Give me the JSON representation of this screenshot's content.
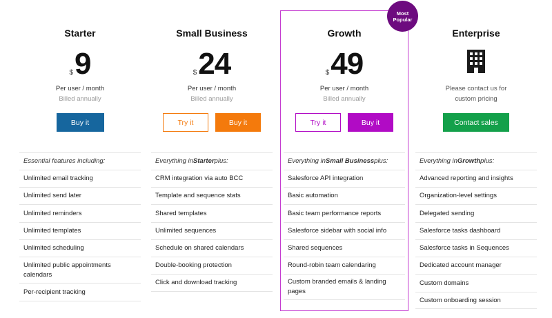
{
  "badge": {
    "line1": "Most",
    "line2": "Popular"
  },
  "colors": {
    "starter_button": "#16669e",
    "small_business": "#f47a0c",
    "growth": "#b10bc5",
    "growth_border": "#c43cd0",
    "badge": "#6d0b7f",
    "enterprise_button": "#13a04a"
  },
  "plans": {
    "starter": {
      "name": "Starter",
      "currency": "$",
      "price": "9",
      "per_user": "Per user / month",
      "billed": "Billed annually",
      "buy_label": "Buy it",
      "features": {
        "intro": "Essential features including:",
        "items": [
          "Unlimited email tracking",
          "Unlimited send later",
          "Unlimited reminders",
          "Unlimited templates",
          "Unlimited scheduling",
          "Unlimited public appointments calendars",
          "Per-recipient tracking"
        ]
      }
    },
    "small_business": {
      "name": "Small Business",
      "currency": "$",
      "price": "24",
      "per_user": "Per user / month",
      "billed": "Billed annually",
      "try_label": "Try it",
      "buy_label": "Buy it",
      "features": {
        "intro_prefix": "Everything in ",
        "intro_bold": "Starter",
        "intro_suffix": " plus:",
        "items": [
          "CRM integration via auto BCC",
          "Template and sequence stats",
          "Shared templates",
          "Unlimited sequences",
          "Schedule on shared calendars",
          "Double-booking protection",
          "Click and download tracking"
        ]
      }
    },
    "growth": {
      "name": "Growth",
      "currency": "$",
      "price": "49",
      "per_user": "Per user / month",
      "billed": "Billed annually",
      "try_label": "Try it",
      "buy_label": "Buy it",
      "features": {
        "intro_prefix": "Everything in ",
        "intro_bold": "Small Business",
        "intro_suffix": " plus:",
        "items": [
          "Salesforce API integration",
          "Basic automation",
          "Basic team performance reports",
          "Salesforce sidebar with social info",
          "Shared sequences",
          "Round-robin team calendaring",
          "Custom branded emails & landing pages"
        ]
      }
    },
    "enterprise": {
      "name": "Enterprise",
      "icon": "building-icon",
      "contact_line1": "Please contact us for",
      "contact_line2": "custom pricing",
      "contact_label": "Contact sales",
      "features": {
        "intro_prefix": "Everything in ",
        "intro_bold": "Growth",
        "intro_suffix": " plus:",
        "items": [
          "Advanced reporting and insights",
          "Organization-level settings",
          "Delegated sending",
          "Salesforce tasks dashboard",
          "Salesforce tasks in Sequences",
          "Dedicated account manager",
          "Custom domains",
          "Custom onboarding session"
        ]
      }
    }
  }
}
